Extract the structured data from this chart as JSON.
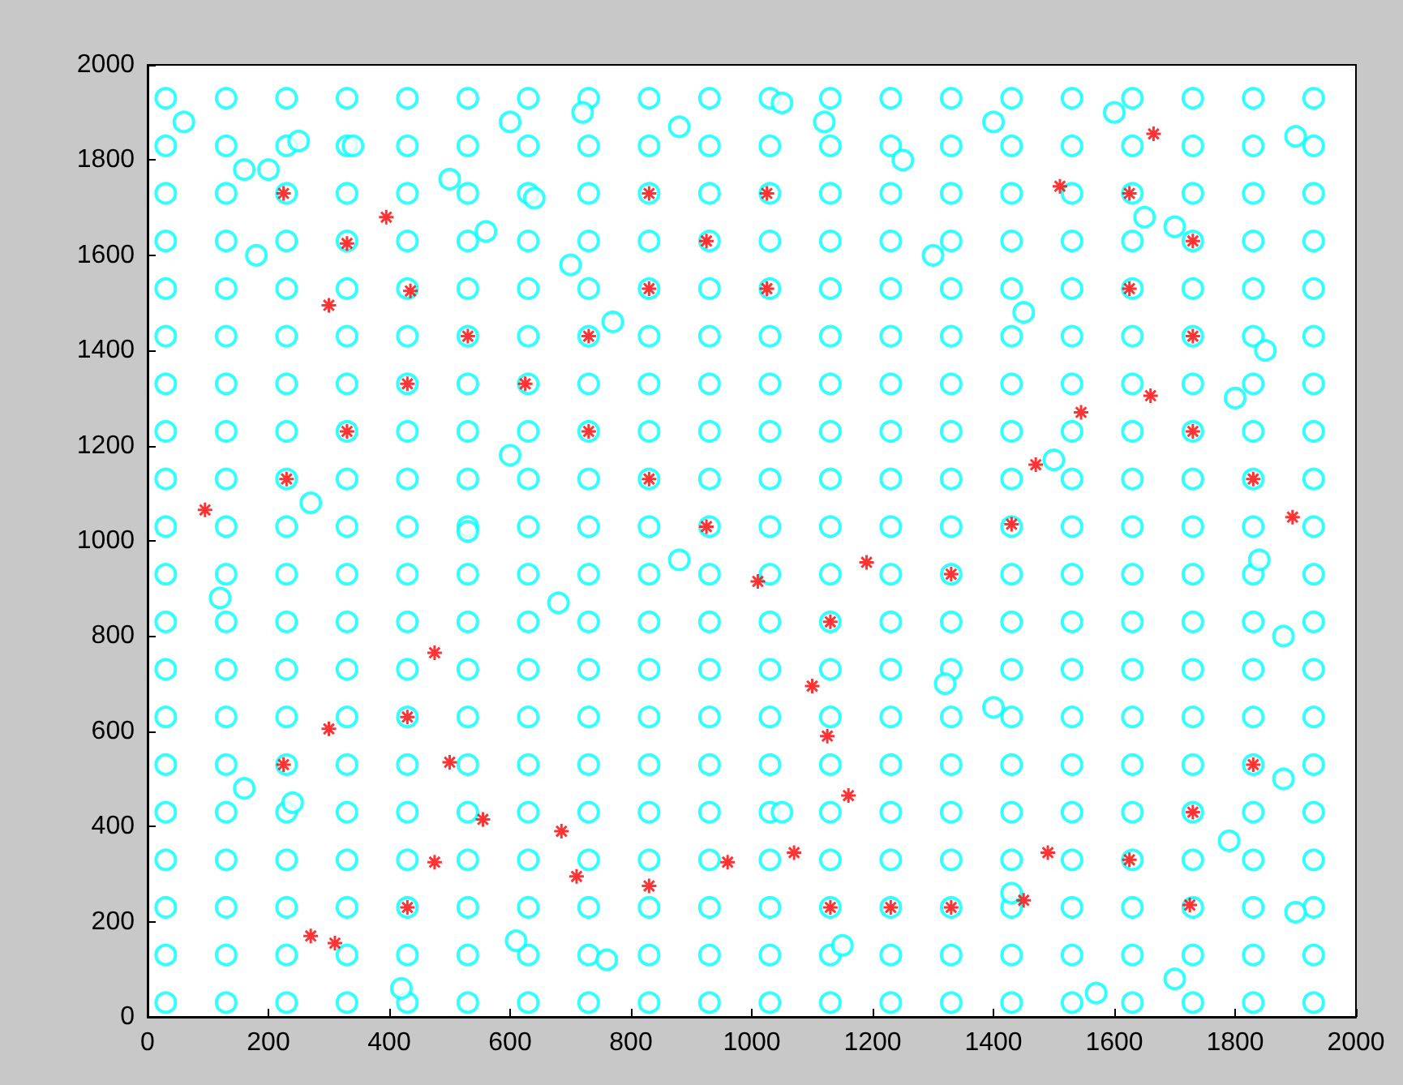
{
  "chart_data": {
    "type": "scatter",
    "xlim": [
      0,
      2000
    ],
    "ylim": [
      0,
      2000
    ],
    "xticks": [
      0,
      200,
      400,
      600,
      800,
      1000,
      1200,
      1400,
      1600,
      1800,
      2000
    ],
    "yticks": [
      0,
      200,
      400,
      600,
      800,
      1000,
      1200,
      1400,
      1600,
      1800,
      2000
    ],
    "grid": false,
    "series": [
      {
        "color": "#00ffff",
        "marker": "circle",
        "x": [
          30,
          130,
          230,
          330,
          430,
          530,
          630,
          730,
          830,
          930,
          1030,
          1130,
          1230,
          1330,
          1430,
          1530,
          1630,
          1730,
          1830,
          1930,
          30,
          130,
          230,
          330,
          430,
          530,
          630,
          730,
          830,
          930,
          1030,
          1130,
          1230,
          1330,
          1430,
          1530,
          1630,
          1730,
          1830,
          1930,
          30,
          130,
          230,
          330,
          430,
          530,
          630,
          730,
          830,
          930,
          1030,
          1130,
          1230,
          1330,
          1430,
          1530,
          1630,
          1730,
          1830,
          1930,
          30,
          130,
          230,
          330,
          430,
          530,
          630,
          730,
          830,
          930,
          1030,
          1130,
          1230,
          1330,
          1430,
          1530,
          1630,
          1730,
          1830,
          1930,
          30,
          130,
          230,
          330,
          430,
          530,
          630,
          730,
          830,
          930,
          1030,
          1130,
          1230,
          1330,
          1430,
          1530,
          1630,
          1730,
          1830,
          1930,
          30,
          130,
          230,
          330,
          430,
          530,
          630,
          730,
          830,
          930,
          1030,
          1130,
          1230,
          1330,
          1430,
          1530,
          1630,
          1730,
          1830,
          1930,
          30,
          130,
          230,
          330,
          430,
          530,
          630,
          730,
          830,
          930,
          1030,
          1130,
          1230,
          1330,
          1430,
          1530,
          1630,
          1730,
          1830,
          1930,
          30,
          130,
          230,
          330,
          430,
          530,
          630,
          730,
          830,
          930,
          1030,
          1130,
          1230,
          1330,
          1430,
          1530,
          1630,
          1730,
          1830,
          1930,
          30,
          130,
          230,
          330,
          430,
          530,
          630,
          730,
          830,
          930,
          1030,
          1130,
          1230,
          1330,
          1430,
          1530,
          1630,
          1730,
          1830,
          1930,
          30,
          130,
          230,
          330,
          430,
          530,
          630,
          730,
          830,
          930,
          1030,
          1130,
          1230,
          1330,
          1430,
          1530,
          1630,
          1730,
          1830,
          1930,
          30,
          130,
          230,
          330,
          430,
          530,
          630,
          730,
          830,
          930,
          1030,
          1130,
          1230,
          1330,
          1430,
          1530,
          1630,
          1730,
          1830,
          1930,
          30,
          130,
          230,
          330,
          430,
          530,
          630,
          730,
          830,
          930,
          1030,
          1130,
          1230,
          1330,
          1430,
          1530,
          1630,
          1730,
          1830,
          1930,
          30,
          130,
          230,
          330,
          430,
          530,
          630,
          730,
          830,
          930,
          1030,
          1130,
          1230,
          1330,
          1430,
          1530,
          1630,
          1730,
          1830,
          1930,
          30,
          130,
          230,
          330,
          430,
          530,
          630,
          730,
          830,
          930,
          1030,
          1130,
          1230,
          1330,
          1430,
          1530,
          1630,
          1730,
          1830,
          1930,
          30,
          130,
          230,
          330,
          430,
          530,
          630,
          730,
          830,
          930,
          1030,
          1130,
          1230,
          1330,
          1430,
          1530,
          1630,
          1730,
          1830,
          1930,
          30,
          130,
          230,
          330,
          430,
          530,
          630,
          730,
          830,
          930,
          1030,
          1130,
          1230,
          1330,
          1430,
          1530,
          1630,
          1730,
          1830,
          1930,
          30,
          130,
          230,
          330,
          430,
          530,
          630,
          730,
          830,
          930,
          1030,
          1130,
          1230,
          1330,
          1430,
          1530,
          1630,
          1730,
          1830,
          1930,
          30,
          130,
          230,
          330,
          430,
          530,
          630,
          730,
          830,
          930,
          1030,
          1130,
          1230,
          1330,
          1430,
          1530,
          1630,
          1730,
          1830,
          1930,
          30,
          130,
          230,
          330,
          430,
          530,
          630,
          730,
          830,
          930,
          1030,
          1130,
          1230,
          1330,
          1430,
          1530,
          1630,
          1730,
          1830,
          1930,
          30,
          130,
          230,
          330,
          430,
          530,
          630,
          730,
          830,
          930,
          1030,
          1130,
          1230,
          1330,
          1430,
          1530,
          1630,
          1730,
          1830,
          1930,
          60,
          160,
          200,
          250,
          600,
          720,
          880,
          1050,
          1120,
          1400,
          1600,
          1900,
          180,
          340,
          500,
          560,
          640,
          700,
          770,
          1250,
          1300,
          1450,
          1700,
          1800,
          1850,
          120,
          270,
          530,
          600,
          680,
          880,
          1400,
          1500,
          1650,
          1880,
          1900,
          1700,
          1570,
          1150,
          160,
          240,
          420,
          610,
          760,
          1050,
          1320,
          1430,
          1790,
          1840,
          1880
        ],
        "values": [
          30,
          30,
          30,
          30,
          30,
          30,
          30,
          30,
          30,
          30,
          30,
          30,
          30,
          30,
          30,
          30,
          30,
          30,
          30,
          30,
          130,
          130,
          130,
          130,
          130,
          130,
          130,
          130,
          130,
          130,
          130,
          130,
          130,
          130,
          130,
          130,
          130,
          130,
          130,
          130,
          230,
          230,
          230,
          230,
          230,
          230,
          230,
          230,
          230,
          230,
          230,
          230,
          230,
          230,
          230,
          230,
          230,
          230,
          230,
          230,
          330,
          330,
          330,
          330,
          330,
          330,
          330,
          330,
          330,
          330,
          330,
          330,
          330,
          330,
          330,
          330,
          330,
          330,
          330,
          330,
          430,
          430,
          430,
          430,
          430,
          430,
          430,
          430,
          430,
          430,
          430,
          430,
          430,
          430,
          430,
          430,
          430,
          430,
          430,
          430,
          530,
          530,
          530,
          530,
          530,
          530,
          530,
          530,
          530,
          530,
          530,
          530,
          530,
          530,
          530,
          530,
          530,
          530,
          530,
          530,
          630,
          630,
          630,
          630,
          630,
          630,
          630,
          630,
          630,
          630,
          630,
          630,
          630,
          630,
          630,
          630,
          630,
          630,
          630,
          630,
          730,
          730,
          730,
          730,
          730,
          730,
          730,
          730,
          730,
          730,
          730,
          730,
          730,
          730,
          730,
          730,
          730,
          730,
          730,
          730,
          830,
          830,
          830,
          830,
          830,
          830,
          830,
          830,
          830,
          830,
          830,
          830,
          830,
          830,
          830,
          830,
          830,
          830,
          830,
          830,
          930,
          930,
          930,
          930,
          930,
          930,
          930,
          930,
          930,
          930,
          930,
          930,
          930,
          930,
          930,
          930,
          930,
          930,
          930,
          930,
          1030,
          1030,
          1030,
          1030,
          1030,
          1030,
          1030,
          1030,
          1030,
          1030,
          1030,
          1030,
          1030,
          1030,
          1030,
          1030,
          1030,
          1030,
          1030,
          1030,
          1130,
          1130,
          1130,
          1130,
          1130,
          1130,
          1130,
          1130,
          1130,
          1130,
          1130,
          1130,
          1130,
          1130,
          1130,
          1130,
          1130,
          1130,
          1130,
          1130,
          1230,
          1230,
          1230,
          1230,
          1230,
          1230,
          1230,
          1230,
          1230,
          1230,
          1230,
          1230,
          1230,
          1230,
          1230,
          1230,
          1230,
          1230,
          1230,
          1230,
          1330,
          1330,
          1330,
          1330,
          1330,
          1330,
          1330,
          1330,
          1330,
          1330,
          1330,
          1330,
          1330,
          1330,
          1330,
          1330,
          1330,
          1330,
          1330,
          1330,
          1430,
          1430,
          1430,
          1430,
          1430,
          1430,
          1430,
          1430,
          1430,
          1430,
          1430,
          1430,
          1430,
          1430,
          1430,
          1430,
          1430,
          1430,
          1430,
          1430,
          1530,
          1530,
          1530,
          1530,
          1530,
          1530,
          1530,
          1530,
          1530,
          1530,
          1530,
          1530,
          1530,
          1530,
          1530,
          1530,
          1530,
          1530,
          1530,
          1530,
          1630,
          1630,
          1630,
          1630,
          1630,
          1630,
          1630,
          1630,
          1630,
          1630,
          1630,
          1630,
          1630,
          1630,
          1630,
          1630,
          1630,
          1630,
          1630,
          1630,
          1730,
          1730,
          1730,
          1730,
          1730,
          1730,
          1730,
          1730,
          1730,
          1730,
          1730,
          1730,
          1730,
          1730,
          1730,
          1730,
          1730,
          1730,
          1730,
          1730,
          1830,
          1830,
          1830,
          1830,
          1830,
          1830,
          1830,
          1830,
          1830,
          1830,
          1830,
          1830,
          1830,
          1830,
          1830,
          1830,
          1830,
          1830,
          1830,
          1830,
          1930,
          1930,
          1930,
          1930,
          1930,
          1930,
          1930,
          1930,
          1930,
          1930,
          1930,
          1930,
          1930,
          1930,
          1930,
          1930,
          1930,
          1930,
          1930,
          1930,
          1880,
          1780,
          1780,
          1840,
          1880,
          1900,
          1870,
          1920,
          1880,
          1880,
          1900,
          1850,
          1600,
          1830,
          1760,
          1650,
          1720,
          1580,
          1460,
          1800,
          1600,
          1480,
          1660,
          1300,
          1400,
          880,
          1080,
          1020,
          1180,
          870,
          960,
          650,
          1170,
          1680,
          800,
          220,
          80,
          50,
          150,
          480,
          450,
          60,
          160,
          120,
          430,
          700,
          260,
          370,
          960,
          500
        ]
      },
      {
        "color": "#ff0000",
        "marker": "cross",
        "x": [
          225,
          330,
          395,
          300,
          435,
          430,
          330,
          230,
          95,
          530,
          625,
          730,
          730,
          830,
          830,
          830,
          925,
          1025,
          1025,
          925,
          1010,
          1190,
          1330,
          1430,
          1470,
          1510,
          1625,
          1625,
          1665,
          1730,
          1730,
          1730,
          1545,
          1660,
          1830,
          1895,
          1830,
          1730,
          1725,
          1625,
          1490,
          1450,
          1330,
          1230,
          1130,
          1070,
          960,
          830,
          710,
          685,
          555,
          500,
          475,
          430,
          430,
          475,
          300,
          225,
          270,
          310,
          1100,
          1125,
          1160,
          1130
        ],
        "values": [
          1730,
          1625,
          1680,
          1495,
          1525,
          1330,
          1230,
          1130,
          1065,
          1430,
          1330,
          1430,
          1230,
          1730,
          1530,
          1130,
          1630,
          1730,
          1530,
          1030,
          915,
          955,
          930,
          1035,
          1160,
          1745,
          1730,
          1530,
          1855,
          1630,
          1430,
          1230,
          1270,
          1305,
          1130,
          1050,
          530,
          430,
          235,
          330,
          345,
          245,
          230,
          230,
          230,
          345,
          325,
          275,
          295,
          390,
          415,
          535,
          325,
          230,
          630,
          765,
          605,
          530,
          170,
          155,
          695,
          590,
          465,
          830
        ]
      }
    ]
  }
}
